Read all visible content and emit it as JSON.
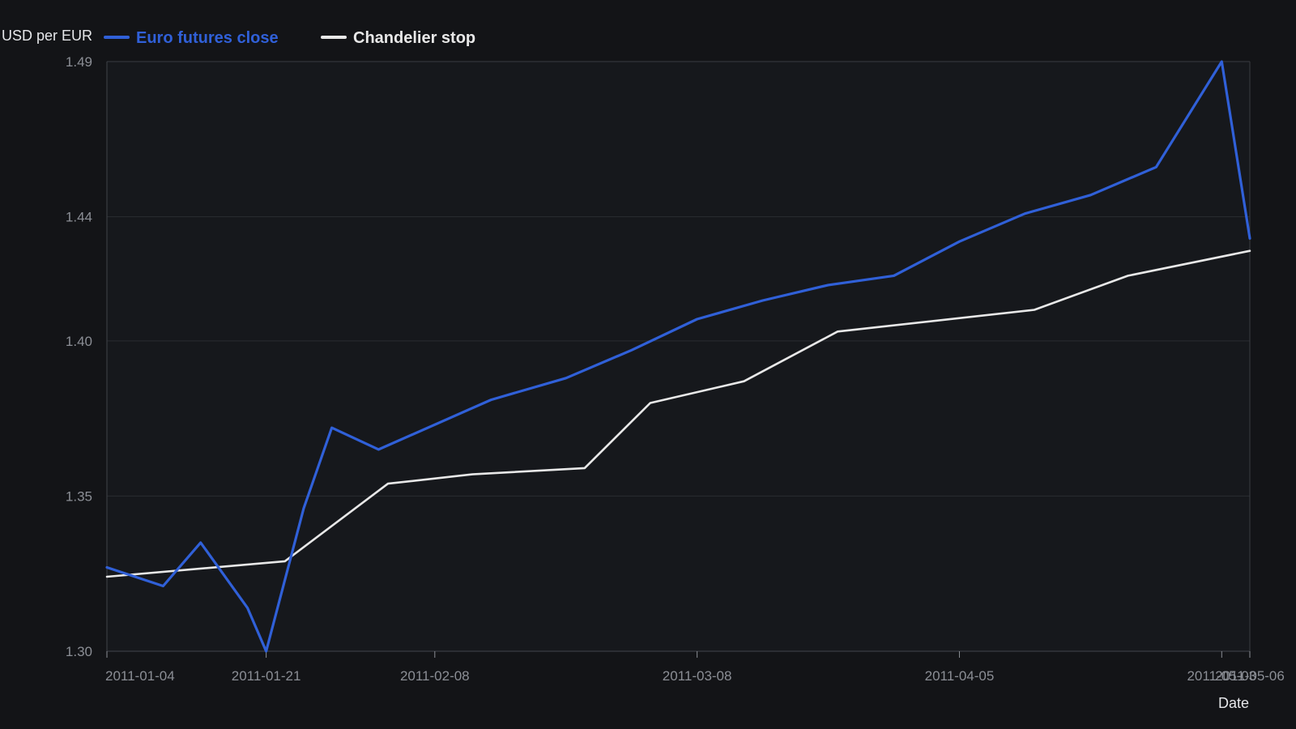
{
  "chart_data": {
    "type": "line",
    "xlabel": "Date",
    "ylabel": "USD per EUR",
    "ylim": [
      1.3,
      1.49
    ],
    "yticks": [
      {
        "value": 1.3,
        "label": "1.30"
      },
      {
        "value": 1.35,
        "label": "1.35"
      },
      {
        "value": 1.4,
        "label": "1.40"
      },
      {
        "value": 1.44,
        "label": "1.44"
      },
      {
        "value": 1.49,
        "label": "1.49"
      }
    ],
    "xlim": [
      "2011-01-04",
      "2011-05-06"
    ],
    "xticks": [
      {
        "value": "2011-01-04",
        "label": "2011-01-04"
      },
      {
        "value": "2011-01-21",
        "label": "2011-01-21"
      },
      {
        "value": "2011-02-08",
        "label": "2011-02-08"
      },
      {
        "value": "2011-03-08",
        "label": "2011-03-08"
      },
      {
        "value": "2011-04-05",
        "label": "2011-04-05"
      },
      {
        "value": "2011-05-03",
        "label": "2011-05-03"
      },
      {
        "value": "2011-05-06",
        "label": "2011-05-06"
      }
    ],
    "grid": true,
    "legend_position": "top-left",
    "series": [
      {
        "name": "Euro futures close",
        "color": "#3060d8",
        "points": [
          {
            "x": "2011-01-04",
            "y": 1.327
          },
          {
            "x": "2011-01-10",
            "y": 1.321
          },
          {
            "x": "2011-01-14",
            "y": 1.335
          },
          {
            "x": "2011-01-19",
            "y": 1.314
          },
          {
            "x": "2011-01-21",
            "y": 1.3
          },
          {
            "x": "2011-01-25",
            "y": 1.346
          },
          {
            "x": "2011-01-28",
            "y": 1.372
          },
          {
            "x": "2011-02-02",
            "y": 1.365
          },
          {
            "x": "2011-02-14",
            "y": 1.381
          },
          {
            "x": "2011-02-22",
            "y": 1.388
          },
          {
            "x": "2011-03-01",
            "y": 1.397
          },
          {
            "x": "2011-03-08",
            "y": 1.407
          },
          {
            "x": "2011-03-15",
            "y": 1.413
          },
          {
            "x": "2011-03-22",
            "y": 1.418
          },
          {
            "x": "2011-03-29",
            "y": 1.421
          },
          {
            "x": "2011-04-05",
            "y": 1.432
          },
          {
            "x": "2011-04-12",
            "y": 1.441
          },
          {
            "x": "2011-04-19",
            "y": 1.447
          },
          {
            "x": "2011-04-26",
            "y": 1.456
          },
          {
            "x": "2011-05-03",
            "y": 1.49
          },
          {
            "x": "2011-05-06",
            "y": 1.433
          }
        ]
      },
      {
        "name": "Chandelier stop",
        "color": "#e8e8e8",
        "points": [
          {
            "x": "2011-01-04",
            "y": 1.324
          },
          {
            "x": "2011-01-23",
            "y": 1.329
          },
          {
            "x": "2011-02-03",
            "y": 1.354
          },
          {
            "x": "2011-02-12",
            "y": 1.357
          },
          {
            "x": "2011-02-24",
            "y": 1.359
          },
          {
            "x": "2011-03-03",
            "y": 1.38
          },
          {
            "x": "2011-03-13",
            "y": 1.387
          },
          {
            "x": "2011-03-23",
            "y": 1.403
          },
          {
            "x": "2011-04-13",
            "y": 1.41
          },
          {
            "x": "2011-04-23",
            "y": 1.421
          },
          {
            "x": "2011-05-06",
            "y": 1.429
          }
        ]
      }
    ]
  },
  "colors": {
    "background": "#131417",
    "plot_background": "#16181c",
    "grid": "#2a2c31",
    "axis": "#3a3c42",
    "tick_text": "#8b8e95",
    "title_text": "#e6e7ea"
  }
}
